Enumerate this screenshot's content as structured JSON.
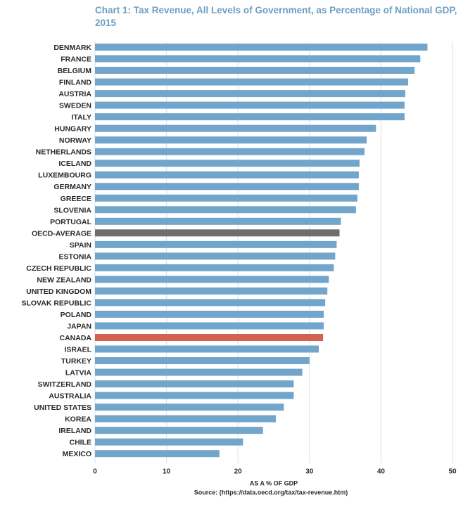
{
  "chart_data": {
    "type": "bar",
    "orientation": "horizontal",
    "title": "Chart 1: Tax Revenue, All Levels of Government, as Percentage of National GDP, 2015",
    "xlabel": "AS A % OF GDP",
    "source": "Source: (https://data.oecd.org/tax/tax-revenue.htm)",
    "xlim": [
      0,
      50
    ],
    "xticks": [
      0,
      10,
      20,
      30,
      40,
      50
    ],
    "grid": true,
    "colors": {
      "default": "#72a5cb",
      "OECD-AVERAGE": "#6e6e6e",
      "CANADA": "#d4624e"
    },
    "categories": [
      "DENMARK",
      "FRANCE",
      "BELGIUM",
      "FINLAND",
      "AUSTRIA",
      "SWEDEN",
      "ITALY",
      "HUNGARY",
      "NORWAY",
      "NETHERLANDS",
      "ICELAND",
      "LUXEMBOURG",
      "GERMANY",
      "GREECE",
      "SLOVENIA",
      "PORTUGAL",
      "OECD-AVERAGE",
      "SPAIN",
      "ESTONIA",
      "CZECH REPUBLIC",
      "NEW ZEALAND",
      "UNITED KINGDOM",
      "SLOVAK REPUBLIC",
      "POLAND",
      "JAPAN",
      "CANADA",
      "ISRAEL",
      "TURKEY",
      "LATVIA",
      "SWITZERLAND",
      "AUSTRALIA",
      "UNITED STATES",
      "KOREA",
      "IRELAND",
      "CHILE",
      "MEXICO"
    ],
    "values": [
      46.5,
      45.5,
      44.7,
      43.8,
      43.4,
      43.3,
      43.3,
      39.3,
      38.0,
      37.7,
      37.0,
      36.9,
      36.9,
      36.7,
      36.5,
      34.4,
      34.2,
      33.8,
      33.6,
      33.4,
      32.7,
      32.5,
      32.2,
      32.0,
      32.0,
      31.9,
      31.3,
      30.0,
      29.0,
      27.8,
      27.8,
      26.4,
      25.3,
      23.5,
      20.7,
      17.4
    ]
  }
}
